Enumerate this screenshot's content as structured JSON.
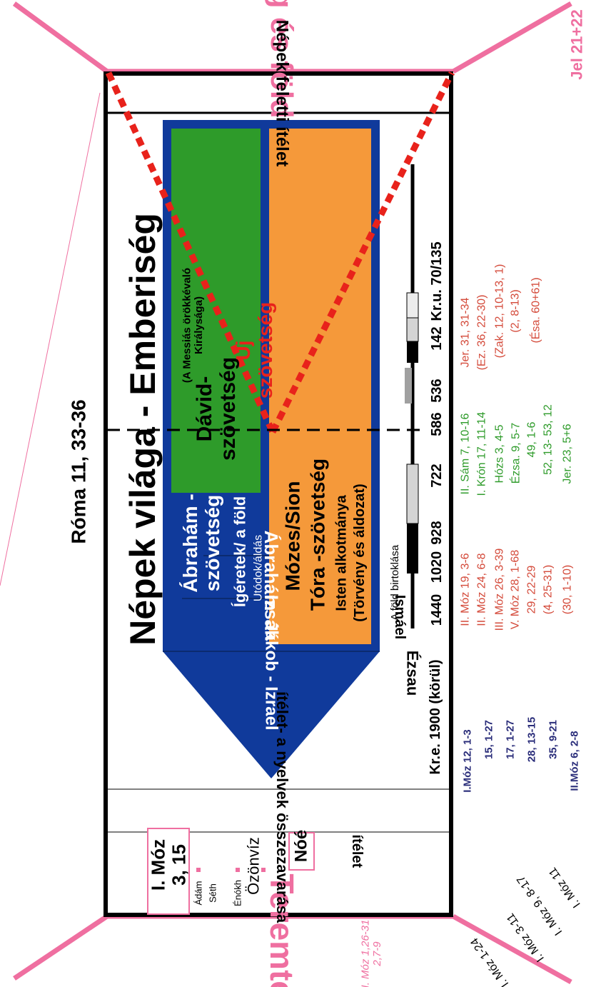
{
  "colors": {
    "pink": "#ef6fa0",
    "blue": "#103a9b",
    "green": "#2e9b2a",
    "orange": "#f5993a",
    "red": "#e8221b",
    "black": "#000000",
    "lightgray": "#d4d4d4",
    "gray": "#a0a0a0",
    "ref_red": "#d44a3a",
    "ref_green": "#2e9b2a",
    "ref_navy": "#2a2d7a"
  },
  "outer": {
    "top_title": "Új ég és föld",
    "top_ref": "Jel 21+22",
    "bottom_title": "Teremtés",
    "left_ref": "Róma 11, 33-36",
    "creation_refs": "I. Móz 1,26-31\n2,7-9"
  },
  "sections": {
    "judgment_top": "Népek feletti ítélet",
    "main_title": "Népek világa - Emberiség",
    "tongues": "ítélet- a nyelvek összezavarása",
    "flood_judgment": "ítélet",
    "flood": "Özönvíz",
    "noah": "Nóé",
    "gen_box": "I. Móz\n3, 15",
    "adam": "Ádám",
    "seth": "Séth",
    "enoch": "Énókh"
  },
  "patriarchs": {
    "abraham": "Ábrahám",
    "isaac": "Izsák",
    "jacob": "Jákob - Izrael",
    "ishmael": "Ismáel",
    "esau": "Ézsau"
  },
  "covenants": {
    "abraham_title": "Ábrahám -\nszövetség",
    "abraham_sub": "Ígéretek/ a föld",
    "abraham_sub2": "Utódok/áldás",
    "moses_title": "Mózes/Sion",
    "moses_title2": "Tóra -szövetség",
    "moses_sub": "Isten alkotmánya",
    "moses_sub2": "(Törvény és áldozat)",
    "david_title": "Dávid-\nszövetség",
    "david_sub": "(A Messiás örökkévaló\nKirálysága)",
    "new_title": "Új\nszövetség"
  },
  "timeline": {
    "start_label": "Kr.e. 1900 (körül)",
    "land_label": "A föld birtoklása",
    "years": [
      "1440",
      "1020",
      "928",
      "722",
      "586",
      "536",
      "142",
      "Kr.u. 70/135"
    ]
  },
  "refs": {
    "gen_left": [
      "I. Móz 1-24",
      "I. Móz 3-11",
      "I. Móz 9, 8-17",
      "I. Móz 11"
    ],
    "abraham_refs": [
      "I.Móz 12, 1-3",
      "15, 1-27",
      "17, 1-27",
      "28, 13-15",
      "35, 9-21",
      "II.Móz 6, 2-8"
    ],
    "moses_refs": [
      "II. Móz 19, 3-6",
      "II. Móz 24, 6-8",
      "III. Móz 26, 3-39",
      "V. Móz 28, 1-68",
      "29, 22-29",
      "(4, 25-31)",
      "(30, 1-10)"
    ],
    "david_refs": [
      "II. Sám 7, 10-16",
      "I. Krón 17, 11-14",
      "Hózs 3, 4-5",
      "Ézsa. 9, 5-7",
      "49, 1-6",
      "52, 13- 53, 12",
      "Jer. 23, 5+6"
    ],
    "new_refs": [
      "Jer. 31, 31-34",
      "(Ez. 36, 22-30)",
      "(Zak. 12, 10-13, 1)",
      "(2, 8-13)",
      "(Ésa. 60+61)"
    ]
  }
}
